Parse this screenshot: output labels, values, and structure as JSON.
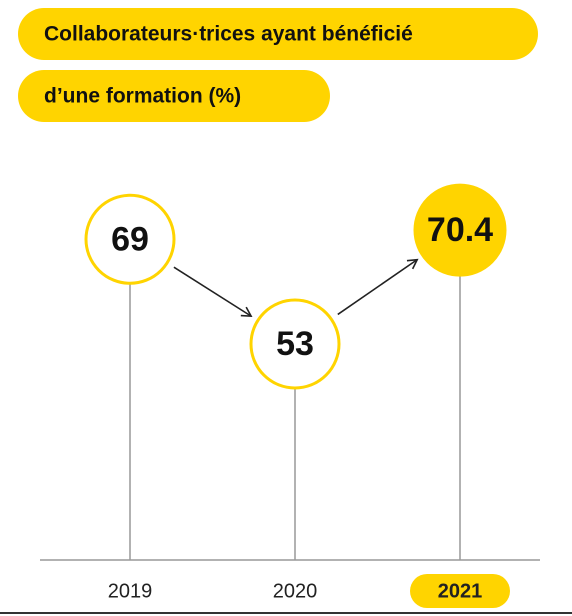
{
  "chart_data": {
    "type": "lollipop",
    "title_lines": [
      "Collaborateurs·trices ayant bénéficié",
      "d’une formation (%)"
    ],
    "categories": [
      "2019",
      "2020",
      "2021"
    ],
    "values": [
      69,
      53,
      70.4
    ],
    "color": "#ffd400",
    "highlight": 2,
    "ylim": [
      20,
      75
    ]
  }
}
